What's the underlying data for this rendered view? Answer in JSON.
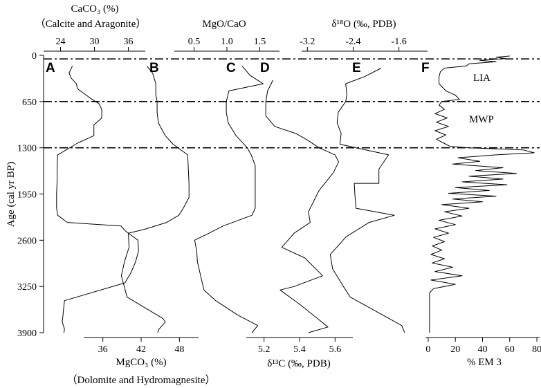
{
  "chart_data": {
    "type": "line",
    "y_axis": {
      "label": "Age (cal yr BP)",
      "ticks": [
        0,
        650,
        1300,
        1950,
        2600,
        3250,
        3900
      ],
      "tick_labels": [
        "0",
        "650",
        "1300",
        "1950",
        "2600",
        "3250",
        "3900"
      ],
      "ylim": [
        0,
        3900
      ],
      "inverted": true
    },
    "boundaries": [
      50,
      650,
      1300
    ],
    "zones": [
      {
        "label": "LIA",
        "age": 300
      },
      {
        "label": "MWP",
        "age": 950
      }
    ],
    "series": [
      {
        "panel_label": "A",
        "title_lines": [
          "CaCO₃ (%)",
          "（Calcite and Aragonite）"
        ],
        "axis_position": "top",
        "xlim": [
          21,
          39
        ],
        "ticks": [
          24,
          30,
          36
        ],
        "tick_labels": [
          "24",
          "30",
          "36"
        ],
        "points": [
          [
            26.1,
            150
          ],
          [
            25.5,
            250
          ],
          [
            25.9,
            320
          ],
          [
            26.8,
            400
          ],
          [
            27,
            470
          ],
          [
            28.2,
            540
          ],
          [
            29.4,
            610
          ],
          [
            30.8,
            680
          ],
          [
            31.3,
            760
          ],
          [
            31.3,
            880
          ],
          [
            29.9,
            980
          ],
          [
            29.9,
            1130
          ],
          [
            27.1,
            1230
          ],
          [
            23.5,
            1400
          ],
          [
            23.4,
            1550
          ],
          [
            23.4,
            1750
          ],
          [
            23.3,
            1950
          ],
          [
            23.3,
            2150
          ],
          [
            23.5,
            2250
          ],
          [
            25.2,
            2350
          ],
          [
            34.7,
            2400
          ],
          [
            35.5,
            2470
          ],
          [
            37.7,
            2600
          ],
          [
            37.8,
            2750
          ],
          [
            37.3,
            2900
          ],
          [
            36.5,
            3050
          ],
          [
            35.4,
            3200
          ],
          [
            24.7,
            3450
          ],
          [
            24.3,
            3750
          ],
          [
            24.7,
            3850
          ],
          [
            24.6,
            3900
          ]
        ]
      },
      {
        "panel_label": "B",
        "title_lines": [
          "MgCO₃ (%)",
          "（Dolomite and Hydromagnesite）"
        ],
        "axis_position": "bottom",
        "xlim": [
          33,
          51
        ],
        "ticks": [
          36,
          42,
          48
        ],
        "tick_labels": [
          "36",
          "42",
          "48"
        ],
        "points": [
          [
            42.9,
            150
          ],
          [
            43.8,
            250
          ],
          [
            44.3,
            400
          ],
          [
            44.3,
            550
          ],
          [
            44.5,
            650
          ],
          [
            44.5,
            800
          ],
          [
            44.7,
            950
          ],
          [
            45.8,
            1130
          ],
          [
            47,
            1250
          ],
          [
            49.3,
            1400
          ],
          [
            49.4,
            1600
          ],
          [
            49.5,
            1800
          ],
          [
            49.5,
            2000
          ],
          [
            48.6,
            2150
          ],
          [
            47.9,
            2250
          ],
          [
            46,
            2350
          ],
          [
            42.4,
            2450
          ],
          [
            40,
            2500
          ],
          [
            40.1,
            2700
          ],
          [
            39.4,
            2900
          ],
          [
            38.9,
            3100
          ],
          [
            39.8,
            3400
          ],
          [
            45.4,
            3700
          ],
          [
            45.8,
            3750
          ],
          [
            44.8,
            3850
          ],
          [
            44.6,
            3900
          ]
        ]
      },
      {
        "panel_label": "C",
        "title_lines": [
          "MgO/CaO"
        ],
        "axis_position": "top",
        "xlim": [
          0.2,
          1.8
        ],
        "ticks": [
          0.5,
          1.0,
          1.5
        ],
        "tick_labels": [
          "0.5",
          "1.0",
          "1.5"
        ],
        "points": [
          [
            1.23,
            150
          ],
          [
            1.35,
            280
          ],
          [
            1.55,
            400
          ],
          [
            1.03,
            500
          ],
          [
            0.99,
            650
          ],
          [
            0.99,
            800
          ],
          [
            1.02,
            950
          ],
          [
            1.14,
            1130
          ],
          [
            1.31,
            1300
          ],
          [
            1.37,
            1400
          ],
          [
            1.43,
            1550
          ],
          [
            1.43,
            1750
          ],
          [
            1.43,
            1950
          ],
          [
            1.43,
            2150
          ],
          [
            1.38,
            2250
          ],
          [
            0.94,
            2400
          ],
          [
            0.73,
            2500
          ],
          [
            0.51,
            2600
          ],
          [
            0.54,
            2750
          ],
          [
            0.55,
            2900
          ],
          [
            0.6,
            3100
          ],
          [
            0.65,
            3300
          ],
          [
            0.83,
            3450
          ],
          [
            1.16,
            3650
          ],
          [
            1.47,
            3800
          ],
          [
            1.38,
            3900
          ]
        ]
      },
      {
        "panel_label": "D",
        "title_lines": [
          "δ¹³C (‰, PDB)"
        ],
        "axis_position": "bottom",
        "xlim": [
          5.1,
          5.7
        ],
        "ticks": [
          5.2,
          5.4,
          5.6
        ],
        "tick_labels": [
          "5.2",
          "5.4",
          "5.6"
        ],
        "points": [
          [
            5.25,
            350
          ],
          [
            5.22,
            500
          ],
          [
            5.21,
            650
          ],
          [
            5.21,
            850
          ],
          [
            5.26,
            1000
          ],
          [
            5.38,
            1100
          ],
          [
            5.45,
            1200
          ],
          [
            5.51,
            1300
          ],
          [
            5.6,
            1400
          ],
          [
            5.62,
            1500
          ],
          [
            5.59,
            1650
          ],
          [
            5.51,
            1900
          ],
          [
            5.45,
            2200
          ],
          [
            5.46,
            2350
          ],
          [
            5.37,
            2500
          ],
          [
            5.3,
            2700
          ],
          [
            5.43,
            2850
          ],
          [
            5.53,
            3100
          ],
          [
            5.37,
            3250
          ],
          [
            5.29,
            3300
          ],
          [
            5.4,
            3500
          ],
          [
            5.5,
            3700
          ],
          [
            5.56,
            3820
          ],
          [
            5.45,
            3900
          ]
        ]
      },
      {
        "panel_label": "E",
        "title_lines": [
          "δ¹⁸O (‰, PDB)"
        ],
        "axis_position": "top",
        "xlim": [
          -3.3,
          -1.1
        ],
        "ticks": [
          -3.2,
          -2.4,
          -1.6
        ],
        "tick_labels": [
          "-3.2",
          "-2.4",
          "-1.6"
        ],
        "points": [
          [
            -1.91,
            180
          ],
          [
            -2.2,
            300
          ],
          [
            -2.53,
            400
          ],
          [
            -2.51,
            550
          ],
          [
            -2.53,
            650
          ],
          [
            -2.66,
            800
          ],
          [
            -2.68,
            950
          ],
          [
            -2.61,
            1100
          ],
          [
            -2.63,
            1250
          ],
          [
            -2.35,
            1300
          ],
          [
            -1.78,
            1400
          ],
          [
            -1.95,
            1600
          ],
          [
            -1.95,
            1800
          ],
          [
            -2.38,
            1800
          ],
          [
            -2.37,
            1950
          ],
          [
            -2.35,
            2150
          ],
          [
            -1.68,
            2250
          ],
          [
            -2.12,
            2350
          ],
          [
            -2.52,
            2550
          ],
          [
            -2.8,
            2800
          ],
          [
            -2.76,
            3000
          ],
          [
            -2.57,
            3250
          ],
          [
            -2.45,
            3400
          ],
          [
            -1.55,
            3800
          ],
          [
            -1.5,
            3900
          ]
        ]
      },
      {
        "panel_label": "F",
        "title_lines": [
          "% EM 3"
        ],
        "axis_position": "bottom",
        "xlim": [
          -2,
          82
        ],
        "ticks": [
          0,
          20,
          40,
          60,
          80
        ],
        "tick_labels": [
          "0",
          "20",
          "40",
          "60",
          "80"
        ],
        "points": [
          [
            60,
            10
          ],
          [
            50,
            25
          ],
          [
            57,
            45
          ],
          [
            38,
            70
          ],
          [
            50,
            90
          ],
          [
            30,
            120
          ],
          [
            28,
            150
          ],
          [
            12,
            180
          ],
          [
            9,
            230
          ],
          [
            8,
            300
          ],
          [
            8,
            400
          ],
          [
            13,
            500
          ],
          [
            20,
            560
          ],
          [
            23,
            620
          ],
          [
            10,
            650
          ],
          [
            8,
            700
          ],
          [
            12,
            760
          ],
          [
            5,
            820
          ],
          [
            14,
            880
          ],
          [
            6,
            940
          ],
          [
            15,
            1000
          ],
          [
            5,
            1060
          ],
          [
            13,
            1120
          ],
          [
            6,
            1180
          ],
          [
            12,
            1240
          ],
          [
            16,
            1280
          ],
          [
            30,
            1300
          ],
          [
            70,
            1330
          ],
          [
            78,
            1370
          ],
          [
            50,
            1400
          ],
          [
            22,
            1440
          ],
          [
            38,
            1490
          ],
          [
            18,
            1530
          ],
          [
            55,
            1580
          ],
          [
            35,
            1620
          ],
          [
            65,
            1660
          ],
          [
            30,
            1700
          ],
          [
            55,
            1740
          ],
          [
            25,
            1780
          ],
          [
            58,
            1820
          ],
          [
            20,
            1860
          ],
          [
            45,
            1900
          ],
          [
            15,
            1940
          ],
          [
            50,
            1980
          ],
          [
            18,
            2020
          ],
          [
            40,
            2060
          ],
          [
            10,
            2100
          ],
          [
            30,
            2150
          ],
          [
            12,
            2200
          ],
          [
            25,
            2260
          ],
          [
            8,
            2320
          ],
          [
            20,
            2380
          ],
          [
            5,
            2440
          ],
          [
            15,
            2500
          ],
          [
            4,
            2560
          ],
          [
            12,
            2620
          ],
          [
            3,
            2680
          ],
          [
            10,
            2740
          ],
          [
            2,
            2800
          ],
          [
            12,
            2860
          ],
          [
            3,
            2920
          ],
          [
            18,
            2980
          ],
          [
            5,
            3040
          ],
          [
            25,
            3100
          ],
          [
            2,
            3160
          ],
          [
            20,
            3220
          ],
          [
            4,
            3280
          ],
          [
            1,
            3340
          ],
          [
            1,
            3500
          ],
          [
            1,
            3700
          ],
          [
            1,
            3900
          ]
        ]
      }
    ]
  }
}
